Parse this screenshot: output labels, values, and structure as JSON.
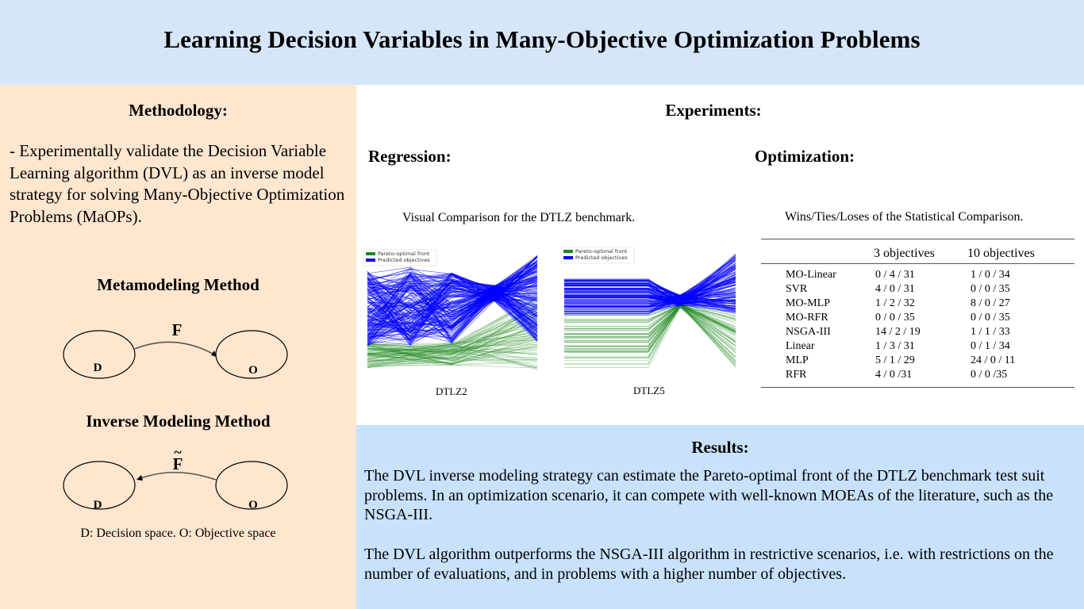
{
  "title": "Learning Decision Variables in Many-Objective Optimization Problems",
  "methodology": {
    "heading": "Methodology:",
    "text": " - Experimentally validate the Decision Variable Learning algorithm (DVL) as an inverse model strategy for solving Many-Objective Optimization Problems (MaOPs).",
    "metamodeling": {
      "heading": "Metamodeling Method",
      "function": "F",
      "left_node": "D",
      "right_node": "O"
    },
    "inverse": {
      "heading": "Inverse Modeling Method",
      "function": "F",
      "left_node": "D",
      "right_node": "O"
    },
    "legend": "D: Decision space. O: Objective space"
  },
  "experiments": {
    "heading": "Experiments:",
    "regression": {
      "heading": "Regression:",
      "caption": "Visual Comparison for the DTLZ benchmark.",
      "legend": [
        "Pareto-optimal front",
        "Predicted objectives"
      ],
      "plots": [
        "DTLZ2",
        "DTLZ5"
      ],
      "colors": {
        "pareto": "#1f8a1f",
        "predicted": "#0000ff"
      }
    },
    "optimization": {
      "heading": "Optimization:",
      "caption": "Wins/Ties/Loses of the Statistical Comparison.",
      "columns": [
        "3 objectives",
        "10 objectives"
      ],
      "rows": [
        {
          "name": "MO-Linear",
          "obj3": "0 / 4 / 31",
          "obj10": "1 / 0 / 34"
        },
        {
          "name": "SVR",
          "obj3": "4 / 0 / 31",
          "obj10": "0 / 0 / 35"
        },
        {
          "name": "MO-MLP",
          "obj3": "1 / 2 / 32",
          "obj10": "8 / 0 / 27"
        },
        {
          "name": "MO-RFR",
          "obj3": "0 / 0 / 35",
          "obj10": "0 / 0 / 35"
        },
        {
          "name": "NSGA-III",
          "obj3": "14 / 2 / 19",
          "obj10": "1 / 1 / 33"
        },
        {
          "name": "Linear",
          "obj3": "1 / 3 / 31",
          "obj10": "0 / 1 / 34"
        },
        {
          "name": "MLP",
          "obj3": "5 / 1 / 29",
          "obj10": "24 / 0 / 11"
        },
        {
          "name": "RFR",
          "obj3": "4 / 0 /31",
          "obj10": "0 / 0 /35"
        }
      ]
    }
  },
  "results": {
    "heading": "Results:",
    "p1": "The DVL inverse modeling strategy can estimate the Pareto-optimal front of the DTLZ benchmark test suit problems. In an optimization scenario, it can compete with well-known MOEAs of the literature, such as the NSGA-III.",
    "p2": "The DVL algorithm outperforms the NSGA-III algorithm in restrictive scenarios, i.e. with restrictions on the number of evaluations, and in problems with a higher number of objectives."
  }
}
